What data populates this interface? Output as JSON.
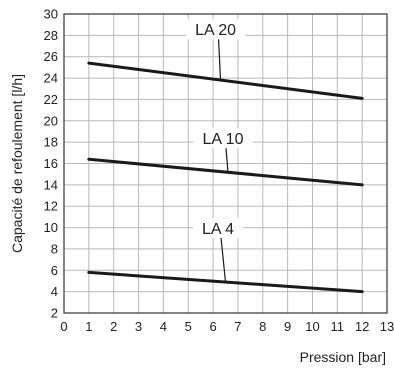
{
  "chart_data": {
    "type": "line",
    "title": "",
    "xlabel": "Pression [bar]",
    "ylabel": "Capacité de refoulement [l/h]",
    "xlim": [
      0,
      13
    ],
    "ylim": [
      2,
      30
    ],
    "xticks": [
      "0",
      "1",
      "2",
      "3",
      "4",
      "5",
      "6",
      "7",
      "8",
      "9",
      "10",
      "11",
      "12",
      "13"
    ],
    "yticks": [
      "2",
      "4",
      "6",
      "8",
      "10",
      "12",
      "14",
      "16",
      "18",
      "20",
      "22",
      "24",
      "26",
      "28",
      "30"
    ],
    "grid": true,
    "legend": "none",
    "series": [
      {
        "name": "LA 20",
        "x": [
          1,
          12
        ],
        "y": [
          25.4,
          22.1
        ],
        "label_at": {
          "x": 6.1,
          "y": 28.2
        },
        "pointer_x": 6.3
      },
      {
        "name": "LA 10",
        "x": [
          1,
          12
        ],
        "y": [
          16.4,
          14.0
        ],
        "label_at": {
          "x": 6.4,
          "y": 18.0
        },
        "pointer_x": 6.6
      },
      {
        "name": "LA 4",
        "x": [
          1,
          12
        ],
        "y": [
          5.8,
          4.0
        ],
        "label_at": {
          "x": 6.2,
          "y": 9.6
        },
        "pointer_x": 6.5
      }
    ]
  }
}
